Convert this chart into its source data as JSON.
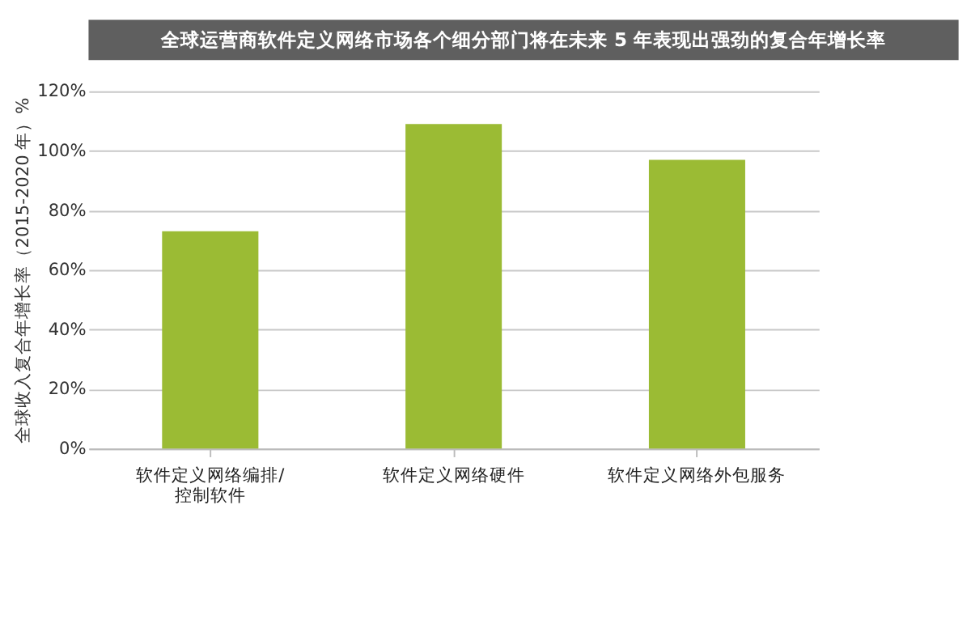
{
  "chart_data": {
    "type": "bar",
    "title": "全球运营商软件定义网络市场各个细分部门将在未来 5 年表现出强劲的复合年增长率",
    "ylabel": "全球收入复合年增长率（2015-2020 年）%",
    "categories": [
      "软件定义网络编排/控制软件",
      "软件定义网络硬件",
      "软件定义网络外包服务"
    ],
    "values": [
      73,
      109,
      97
    ],
    "color": "#9bbb34",
    "ylim": [
      0,
      120
    ],
    "yticks": [
      {
        "value": 0,
        "label": "0%"
      },
      {
        "value": 20,
        "label": "20%"
      },
      {
        "value": 40,
        "label": "40%"
      },
      {
        "value": 60,
        "label": "60%"
      },
      {
        "value": 80,
        "label": "80%"
      },
      {
        "value": 100,
        "label": "100%"
      },
      {
        "value": 120,
        "label": "120%"
      }
    ],
    "grid": "y"
  }
}
